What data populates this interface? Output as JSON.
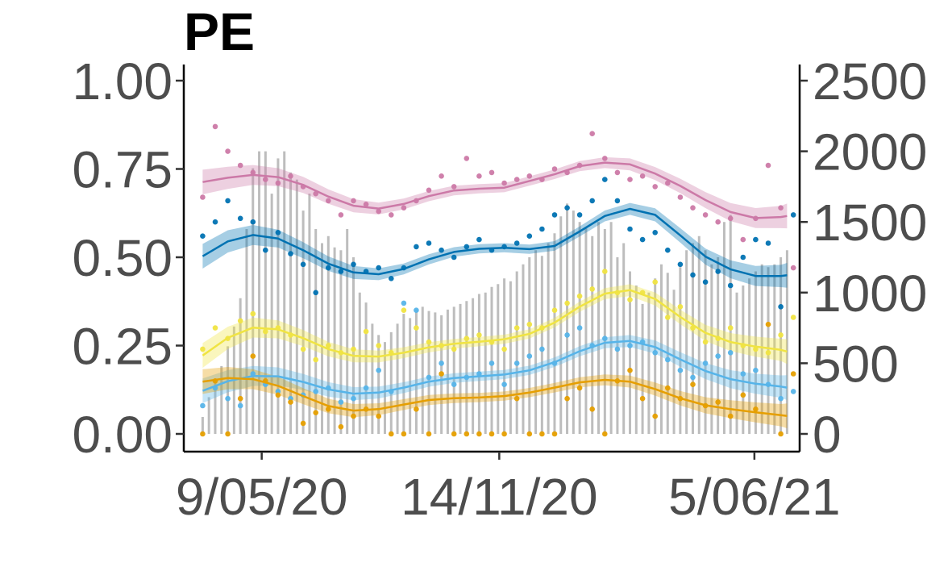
{
  "chart_data": {
    "type": "line",
    "title": "PE",
    "xlabel": "",
    "ylabel": "",
    "y2label": "",
    "x_tick_labels": [
      "9/05/20",
      "14/11/20",
      "5/06/21"
    ],
    "x_tick_dates": [
      "2020-05-09",
      "2020-11-14",
      "2021-06-05"
    ],
    "x_range": [
      "2020-03-08",
      "2021-07-11"
    ],
    "ylim": [
      0,
      1
    ],
    "y_ticks": [
      0,
      0.25,
      0.5,
      0.75,
      1
    ],
    "y_tick_labels": [
      "0.00",
      "0.25",
      "0.50",
      "0.75",
      "1.00"
    ],
    "y2lim": [
      0,
      2500
    ],
    "y2_ticks": [
      0,
      500,
      1000,
      1500,
      2000,
      2500
    ],
    "y2_tick_labels": [
      "0",
      "500",
      "1000",
      "1500",
      "2000",
      "2500"
    ],
    "grid": false,
    "legend": "none",
    "bar_color": "#bdbdbd",
    "bars": {
      "axis": "right",
      "dates": [
        "2020-03-23",
        "2020-03-28",
        "2020-04-02",
        "2020-04-07",
        "2020-04-12",
        "2020-04-17",
        "2020-04-22",
        "2020-04-27",
        "2020-05-02",
        "2020-05-07",
        "2020-05-12",
        "2020-05-17",
        "2020-05-22",
        "2020-05-27",
        "2020-06-01",
        "2020-06-06",
        "2020-06-11",
        "2020-06-16",
        "2020-06-21",
        "2020-06-26",
        "2020-07-01",
        "2020-07-06",
        "2020-07-11",
        "2020-07-16",
        "2020-07-21",
        "2020-07-26",
        "2020-07-31",
        "2020-08-05",
        "2020-08-10",
        "2020-08-15",
        "2020-08-20",
        "2020-08-25",
        "2020-08-30",
        "2020-09-04",
        "2020-09-09",
        "2020-09-14",
        "2020-09-19",
        "2020-09-24",
        "2020-09-29",
        "2020-10-04",
        "2020-10-09",
        "2020-10-14",
        "2020-10-19",
        "2020-10-24",
        "2020-10-29",
        "2020-11-03",
        "2020-11-08",
        "2020-11-13",
        "2020-11-18",
        "2020-11-23",
        "2020-11-28",
        "2020-12-03",
        "2020-12-08",
        "2020-12-13",
        "2020-12-18",
        "2020-12-23",
        "2020-12-28",
        "2021-01-02",
        "2021-01-07",
        "2021-01-12",
        "2021-01-17",
        "2021-01-22",
        "2021-01-27",
        "2021-02-01",
        "2021-02-06",
        "2021-02-11",
        "2021-02-16",
        "2021-02-21",
        "2021-02-26",
        "2021-03-03",
        "2021-03-08",
        "2021-03-13",
        "2021-03-18",
        "2021-03-23",
        "2021-03-28",
        "2021-04-02",
        "2021-04-07",
        "2021-04-12",
        "2021-04-17",
        "2021-04-22",
        "2021-04-27",
        "2021-05-02",
        "2021-05-07",
        "2021-05-12",
        "2021-05-17",
        "2021-05-22",
        "2021-05-27",
        "2021-06-01",
        "2021-06-06",
        "2021-06-11",
        "2021-06-16",
        "2021-06-21",
        "2021-06-26",
        "2021-07-01"
      ],
      "values": [
        120,
        260,
        380,
        480,
        620,
        760,
        960,
        1450,
        1880,
        2000,
        2000,
        1700,
        1950,
        2000,
        1850,
        1800,
        1580,
        1700,
        1450,
        1350,
        1400,
        1320,
        1300,
        1450,
        1250,
        1000,
        930,
        780,
        700,
        650,
        720,
        780,
        850,
        820,
        880,
        900,
        870,
        860,
        840,
        880,
        900,
        920,
        940,
        960,
        990,
        1000,
        1040,
        1060,
        1100,
        1080,
        1150,
        1200,
        1250,
        1300,
        1260,
        1350,
        1420,
        1540,
        1630,
        1580,
        1500,
        1460,
        1400,
        1500,
        1450,
        1500,
        1250,
        1350,
        1150,
        1050,
        920,
        1000,
        1100,
        1200,
        1140,
        1020,
        1180,
        1300,
        1350,
        1400,
        1300,
        1200,
        1250,
        1500,
        1550,
        1000,
        1050,
        1100,
        1150,
        1200,
        1180,
        1200,
        1250,
        1300
      ]
    },
    "series": [
      {
        "color": "#cc79a7",
        "x": [
          "2020-03-23",
          "2020-04-12",
          "2020-05-02",
          "2020-05-22",
          "2020-06-11",
          "2020-07-01",
          "2020-07-21",
          "2020-08-10",
          "2020-08-30",
          "2020-09-19",
          "2020-10-09",
          "2020-10-29",
          "2020-11-18",
          "2020-12-08",
          "2020-12-28",
          "2021-01-17",
          "2021-02-06",
          "2021-02-26",
          "2021-03-18",
          "2021-04-07",
          "2021-04-27",
          "2021-05-17",
          "2021-06-06",
          "2021-06-26",
          "2021-07-01"
        ],
        "y": [
          0.713,
          0.725,
          0.733,
          0.727,
          0.705,
          0.672,
          0.646,
          0.638,
          0.651,
          0.673,
          0.689,
          0.694,
          0.697,
          0.716,
          0.735,
          0.758,
          0.768,
          0.763,
          0.737,
          0.702,
          0.662,
          0.628,
          0.611,
          0.614,
          0.617
        ],
        "points_x": [
          "2020-03-23",
          "2020-04-02",
          "2020-04-12",
          "2020-04-22",
          "2020-05-02",
          "2020-05-12",
          "2020-05-22",
          "2020-06-01",
          "2020-06-11",
          "2020-06-21",
          "2020-07-01",
          "2020-07-11",
          "2020-07-21",
          "2020-07-31",
          "2020-08-10",
          "2020-08-20",
          "2020-08-30",
          "2020-09-09",
          "2020-09-19",
          "2020-09-29",
          "2020-10-09",
          "2020-10-19",
          "2020-10-29",
          "2020-11-08",
          "2020-11-18",
          "2020-11-28",
          "2020-12-08",
          "2020-12-18",
          "2020-12-28",
          "2021-01-07",
          "2021-01-17",
          "2021-01-27",
          "2021-02-06",
          "2021-02-16",
          "2021-02-26",
          "2021-03-08",
          "2021-03-18",
          "2021-03-28",
          "2021-04-07",
          "2021-04-17",
          "2021-04-27",
          "2021-05-07",
          "2021-05-17",
          "2021-05-27",
          "2021-06-06",
          "2021-06-16",
          "2021-06-26",
          "2021-07-06"
        ],
        "points_y": [
          0.67,
          0.87,
          0.8,
          0.76,
          0.74,
          0.72,
          0.71,
          0.73,
          0.7,
          0.68,
          0.66,
          0.62,
          0.66,
          0.65,
          0.63,
          0.62,
          0.64,
          0.66,
          0.69,
          0.73,
          0.7,
          0.78,
          0.73,
          0.74,
          0.71,
          0.72,
          0.73,
          0.72,
          0.75,
          0.74,
          0.76,
          0.85,
          0.78,
          0.74,
          0.72,
          0.73,
          0.7,
          0.71,
          0.67,
          0.64,
          0.62,
          0.6,
          0.61,
          0.55,
          0.61,
          0.76,
          0.64,
          0.47
        ]
      },
      {
        "color": "#0072b2",
        "x": [
          "2020-03-23",
          "2020-04-12",
          "2020-05-02",
          "2020-05-22",
          "2020-06-11",
          "2020-07-01",
          "2020-07-21",
          "2020-08-10",
          "2020-08-30",
          "2020-09-19",
          "2020-10-09",
          "2020-10-29",
          "2020-11-18",
          "2020-12-08",
          "2020-12-28",
          "2021-01-17",
          "2021-02-06",
          "2021-02-26",
          "2021-03-18",
          "2021-04-07",
          "2021-04-27",
          "2021-05-17",
          "2021-06-06",
          "2021-06-26",
          "2021-07-01"
        ],
        "y": [
          0.503,
          0.545,
          0.563,
          0.553,
          0.52,
          0.482,
          0.457,
          0.452,
          0.467,
          0.494,
          0.515,
          0.524,
          0.527,
          0.523,
          0.532,
          0.573,
          0.617,
          0.637,
          0.62,
          0.562,
          0.502,
          0.466,
          0.447,
          0.447,
          0.449
        ],
        "points_x": [
          "2020-03-23",
          "2020-04-02",
          "2020-04-12",
          "2020-04-22",
          "2020-05-02",
          "2020-05-12",
          "2020-05-22",
          "2020-06-01",
          "2020-06-11",
          "2020-06-21",
          "2020-07-01",
          "2020-07-11",
          "2020-07-21",
          "2020-07-31",
          "2020-08-10",
          "2020-08-20",
          "2020-08-30",
          "2020-09-09",
          "2020-09-19",
          "2020-09-29",
          "2020-10-09",
          "2020-10-19",
          "2020-10-29",
          "2020-11-08",
          "2020-11-18",
          "2020-11-28",
          "2020-12-08",
          "2020-12-18",
          "2020-12-28",
          "2021-01-07",
          "2021-01-17",
          "2021-01-27",
          "2021-02-06",
          "2021-02-16",
          "2021-02-26",
          "2021-03-08",
          "2021-03-18",
          "2021-03-28",
          "2021-04-07",
          "2021-04-17",
          "2021-04-27",
          "2021-05-07",
          "2021-05-17",
          "2021-05-27",
          "2021-06-06",
          "2021-06-16",
          "2021-06-26",
          "2021-07-06"
        ],
        "points_y": [
          0.56,
          0.6,
          0.66,
          0.61,
          0.6,
          0.52,
          0.57,
          0.51,
          0.48,
          0.4,
          0.47,
          0.46,
          0.48,
          0.46,
          0.47,
          0.44,
          0.47,
          0.53,
          0.54,
          0.52,
          0.5,
          0.53,
          0.55,
          0.52,
          0.53,
          0.54,
          0.56,
          0.58,
          0.62,
          0.64,
          0.62,
          0.66,
          0.72,
          0.66,
          0.58,
          0.55,
          0.57,
          0.52,
          0.48,
          0.45,
          0.43,
          0.46,
          0.42,
          0.5,
          0.55,
          0.54,
          0.36,
          0.62
        ]
      },
      {
        "color": "#f0e442",
        "x": [
          "2020-03-23",
          "2020-04-12",
          "2020-05-02",
          "2020-05-22",
          "2020-06-11",
          "2020-07-01",
          "2020-07-21",
          "2020-08-10",
          "2020-08-30",
          "2020-09-19",
          "2020-10-09",
          "2020-10-29",
          "2020-11-18",
          "2020-12-08",
          "2020-12-28",
          "2021-01-17",
          "2021-02-06",
          "2021-02-26",
          "2021-03-18",
          "2021-04-07",
          "2021-04-27",
          "2021-05-17",
          "2021-06-06",
          "2021-06-26",
          "2021-07-01"
        ],
        "y": [
          0.222,
          0.272,
          0.301,
          0.296,
          0.271,
          0.24,
          0.221,
          0.219,
          0.23,
          0.245,
          0.255,
          0.261,
          0.268,
          0.283,
          0.315,
          0.36,
          0.397,
          0.407,
          0.382,
          0.331,
          0.286,
          0.26,
          0.247,
          0.238,
          0.233
        ],
        "points_x": [
          "2020-03-23",
          "2020-04-02",
          "2020-04-12",
          "2020-04-22",
          "2020-05-02",
          "2020-05-12",
          "2020-05-22",
          "2020-06-01",
          "2020-06-11",
          "2020-06-21",
          "2020-07-01",
          "2020-07-11",
          "2020-07-21",
          "2020-07-31",
          "2020-08-10",
          "2020-08-20",
          "2020-08-30",
          "2020-09-09",
          "2020-09-19",
          "2020-09-29",
          "2020-10-09",
          "2020-10-19",
          "2020-10-29",
          "2020-11-08",
          "2020-11-18",
          "2020-11-28",
          "2020-12-08",
          "2020-12-18",
          "2020-12-28",
          "2021-01-07",
          "2021-01-17",
          "2021-01-27",
          "2021-02-06",
          "2021-02-16",
          "2021-02-26",
          "2021-03-08",
          "2021-03-18",
          "2021-03-28",
          "2021-04-07",
          "2021-04-17",
          "2021-04-27",
          "2021-05-07",
          "2021-05-17",
          "2021-05-27",
          "2021-06-06",
          "2021-06-16",
          "2021-06-26",
          "2021-07-06"
        ],
        "points_y": [
          0.24,
          0.3,
          0.27,
          0.32,
          0.34,
          0.29,
          0.3,
          0.28,
          0.24,
          0.21,
          0.25,
          0.23,
          0.24,
          0.29,
          0.25,
          0.23,
          0.35,
          0.3,
          0.26,
          0.25,
          0.24,
          0.27,
          0.28,
          0.26,
          0.24,
          0.3,
          0.31,
          0.3,
          0.35,
          0.37,
          0.39,
          0.41,
          0.46,
          0.4,
          0.38,
          0.4,
          0.43,
          0.33,
          0.36,
          0.3,
          0.26,
          0.27,
          0.3,
          0.25,
          0.24,
          0.23,
          0.28,
          0.33
        ]
      },
      {
        "color": "#56b4e9",
        "x": [
          "2020-03-23",
          "2020-04-12",
          "2020-05-02",
          "2020-05-22",
          "2020-06-11",
          "2020-07-01",
          "2020-07-21",
          "2020-08-10",
          "2020-08-30",
          "2020-09-19",
          "2020-10-09",
          "2020-10-29",
          "2020-11-18",
          "2020-12-08",
          "2020-12-28",
          "2021-01-17",
          "2021-02-06",
          "2021-02-26",
          "2021-03-18",
          "2021-04-07",
          "2021-04-27",
          "2021-05-17",
          "2021-06-06",
          "2021-06-26",
          "2021-07-01"
        ],
        "y": [
          0.122,
          0.149,
          0.164,
          0.163,
          0.147,
          0.126,
          0.114,
          0.117,
          0.131,
          0.148,
          0.158,
          0.163,
          0.168,
          0.18,
          0.203,
          0.234,
          0.258,
          0.263,
          0.246,
          0.211,
          0.178,
          0.155,
          0.142,
          0.134,
          0.131
        ],
        "points_x": [
          "2020-03-23",
          "2020-04-02",
          "2020-04-12",
          "2020-04-22",
          "2020-05-02",
          "2020-05-12",
          "2020-05-22",
          "2020-06-01",
          "2020-06-11",
          "2020-06-21",
          "2020-07-01",
          "2020-07-11",
          "2020-07-21",
          "2020-07-31",
          "2020-08-10",
          "2020-08-20",
          "2020-08-30",
          "2020-09-09",
          "2020-09-19",
          "2020-09-29",
          "2020-10-09",
          "2020-10-19",
          "2020-10-29",
          "2020-11-08",
          "2020-11-18",
          "2020-11-28",
          "2020-12-08",
          "2020-12-18",
          "2020-12-28",
          "2021-01-07",
          "2021-01-17",
          "2021-01-27",
          "2021-02-06",
          "2021-02-16",
          "2021-02-26",
          "2021-03-08",
          "2021-03-18",
          "2021-03-28",
          "2021-04-07",
          "2021-04-17",
          "2021-04-27",
          "2021-05-07",
          "2021-05-17",
          "2021-05-27",
          "2021-06-06",
          "2021-06-16",
          "2021-06-26",
          "2021-07-06"
        ],
        "points_y": [
          0.08,
          0.13,
          0.1,
          0.08,
          0.17,
          0.14,
          0.12,
          0.1,
          0.11,
          0.12,
          0.13,
          0.09,
          0.1,
          0.13,
          0.18,
          0.12,
          0.37,
          0.35,
          0.16,
          0.2,
          0.14,
          0.16,
          0.17,
          0.2,
          0.14,
          0.2,
          0.22,
          0.24,
          0.2,
          0.28,
          0.3,
          0.25,
          0.27,
          0.24,
          0.25,
          0.26,
          0.23,
          0.21,
          0.18,
          0.16,
          0.2,
          0.22,
          0.23,
          0.17,
          0.18,
          0.14,
          0.1,
          0.12
        ]
      },
      {
        "color": "#e69f00",
        "x": [
          "2020-03-23",
          "2020-04-12",
          "2020-05-02",
          "2020-05-22",
          "2020-06-11",
          "2020-07-01",
          "2020-07-21",
          "2020-08-10",
          "2020-08-30",
          "2020-09-19",
          "2020-10-09",
          "2020-10-29",
          "2020-11-18",
          "2020-12-08",
          "2020-12-28",
          "2021-01-17",
          "2021-02-06",
          "2021-02-26",
          "2021-03-18",
          "2021-04-07",
          "2021-04-27",
          "2021-05-17",
          "2021-06-06",
          "2021-06-26",
          "2021-07-01"
        ],
        "y": [
          0.148,
          0.158,
          0.155,
          0.136,
          0.107,
          0.079,
          0.066,
          0.07,
          0.083,
          0.096,
          0.101,
          0.103,
          0.107,
          0.117,
          0.131,
          0.146,
          0.153,
          0.148,
          0.127,
          0.101,
          0.081,
          0.07,
          0.061,
          0.053,
          0.051
        ],
        "points_x": [
          "2020-03-23",
          "2020-04-02",
          "2020-04-12",
          "2020-04-22",
          "2020-05-02",
          "2020-05-12",
          "2020-05-22",
          "2020-06-01",
          "2020-06-11",
          "2020-06-21",
          "2020-07-01",
          "2020-07-11",
          "2020-07-21",
          "2020-07-31",
          "2020-08-10",
          "2020-08-20",
          "2020-08-30",
          "2020-09-09",
          "2020-09-19",
          "2020-09-29",
          "2020-10-09",
          "2020-10-19",
          "2020-10-29",
          "2020-11-08",
          "2020-11-18",
          "2020-11-28",
          "2020-12-08",
          "2020-12-18",
          "2020-12-28",
          "2021-01-07",
          "2021-01-17",
          "2021-01-27",
          "2021-02-06",
          "2021-02-16",
          "2021-02-26",
          "2021-03-08",
          "2021-03-18",
          "2021-03-28",
          "2021-04-07",
          "2021-04-17",
          "2021-04-27",
          "2021-05-07",
          "2021-05-17",
          "2021-05-27",
          "2021-06-06",
          "2021-06-16",
          "2021-06-26",
          "2021-07-06"
        ],
        "points_y": [
          0.0,
          0.15,
          0.0,
          0.1,
          0.22,
          0.15,
          0.11,
          0.09,
          0.03,
          0.06,
          0.07,
          0.02,
          0.05,
          0.07,
          0.05,
          0.0,
          0.0,
          0.07,
          0.0,
          0.17,
          0.0,
          0.0,
          0.0,
          0.0,
          0.0,
          0.1,
          0.0,
          0.0,
          0.0,
          0.1,
          0.13,
          0.07,
          0.0,
          0.15,
          0.18,
          0.1,
          0.05,
          0.13,
          0.1,
          0.14,
          0.08,
          0.09,
          0.05,
          0.11,
          0.07,
          0.31,
          0.0,
          0.17
        ]
      }
    ]
  }
}
